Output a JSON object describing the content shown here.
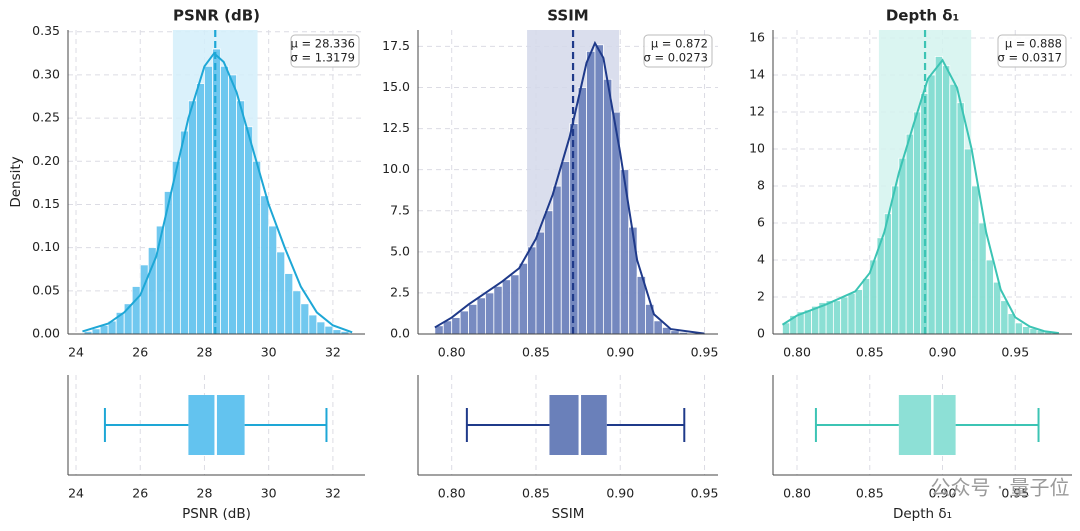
{
  "chart_data": [
    {
      "type": "histogram",
      "title": "PSNR (dB)",
      "xlabel": "PSNR (dB)",
      "ylabel": "Density",
      "color": "#62c3ee",
      "band_color": "#d3eefa",
      "grid": true,
      "bins": [
        24.25,
        24.5,
        24.75,
        25,
        25.25,
        25.5,
        25.75,
        26,
        26.25,
        26.5,
        26.75,
        27,
        27.25,
        27.5,
        27.75,
        28,
        28.25,
        28.5,
        28.75,
        29,
        29.25,
        29.5,
        29.75,
        30,
        30.25,
        30.5,
        30.75,
        31,
        31.25,
        31.5,
        31.75,
        32,
        32.25,
        32.5
      ],
      "counts": [
        0.003,
        0.006,
        0.01,
        0.015,
        0.025,
        0.035,
        0.055,
        0.08,
        0.1,
        0.125,
        0.165,
        0.2,
        0.235,
        0.27,
        0.29,
        0.31,
        0.33,
        0.31,
        0.3,
        0.27,
        0.24,
        0.2,
        0.16,
        0.125,
        0.095,
        0.07,
        0.05,
        0.035,
        0.022,
        0.014,
        0.009,
        0.005,
        0.003
      ],
      "kde": {
        "color": "#1ea7d6",
        "x": [
          24.2,
          25,
          25.5,
          26,
          26.5,
          27,
          27.5,
          28,
          28.3,
          28.6,
          29,
          29.5,
          30,
          30.5,
          31,
          31.5,
          32,
          32.6
        ],
        "y": [
          0.003,
          0.012,
          0.025,
          0.045,
          0.09,
          0.17,
          0.25,
          0.31,
          0.325,
          0.315,
          0.28,
          0.215,
          0.15,
          0.1,
          0.055,
          0.025,
          0.01,
          0.002
        ]
      },
      "mean": {
        "value": 28.336,
        "label": "μ = 28.336"
      },
      "std": {
        "value": 1.3179,
        "label": "σ = 1.3179"
      },
      "box": {
        "color": "#63c3ef",
        "line_color": "#1ea7d6",
        "whislo": 24.9,
        "q1": 27.5,
        "med": 28.35,
        "q3": 29.25,
        "whishi": 31.8
      },
      "xlim": [
        23.75,
        33
      ],
      "ylim": [
        0,
        0.352
      ],
      "xticks": [
        24,
        26,
        28,
        30,
        32
      ],
      "yticks": [
        {
          "value": 0,
          "label": "0.00"
        },
        0.05,
        {
          "value": 0.1,
          "label": "0.10"
        },
        0.15,
        {
          "value": 0.2,
          "label": "0.20"
        },
        0.25,
        {
          "value": 0.3,
          "label": "0.30"
        },
        0.35
      ]
    },
    {
      "type": "histogram",
      "title": "SSIM",
      "xlabel": "SSIM",
      "color": "#6a7fbb",
      "band_color": "#d3d8ea",
      "grid": true,
      "bins": [
        0.79,
        0.795,
        0.8,
        0.805,
        0.81,
        0.815,
        0.82,
        0.825,
        0.83,
        0.835,
        0.84,
        0.845,
        0.85,
        0.855,
        0.86,
        0.865,
        0.87,
        0.875,
        0.88,
        0.885,
        0.89,
        0.895,
        0.9,
        0.905,
        0.91,
        0.915,
        0.92,
        0.925,
        0.93,
        0.935,
        0.94,
        0.945,
        0.95
      ],
      "counts": [
        0.5,
        0.8,
        1.0,
        1.4,
        1.8,
        2.2,
        2.5,
        2.9,
        3.3,
        3.6,
        4.3,
        5.3,
        6.2,
        7.5,
        9.0,
        10.5,
        12.8,
        15.0,
        17.2,
        17.6,
        15.5,
        13.5,
        10.0,
        6.5,
        3.5,
        1.8,
        0.8,
        0.4,
        0.2,
        0.1,
        0.05,
        0.02
      ],
      "kde": {
        "color": "#1f3a8a",
        "x": [
          0.79,
          0.8,
          0.81,
          0.82,
          0.83,
          0.84,
          0.85,
          0.86,
          0.87,
          0.88,
          0.885,
          0.89,
          0.9,
          0.91,
          0.92,
          0.93,
          0.95
        ],
        "y": [
          0.4,
          1.0,
          1.8,
          2.5,
          3.2,
          4.0,
          5.8,
          8.5,
          12.0,
          16.5,
          17.7,
          16.8,
          11.0,
          4.5,
          1.2,
          0.3,
          0.02
        ]
      },
      "mean": {
        "value": 0.872,
        "label": "μ = 0.872"
      },
      "std": {
        "value": 0.0273,
        "label": "σ = 0.0273"
      },
      "box": {
        "color": "#6a80ba",
        "line_color": "#1f3a8a",
        "whislo": 0.809,
        "q1": 0.858,
        "med": 0.876,
        "q3": 0.892,
        "whishi": 0.938
      },
      "xlim": [
        0.78,
        0.958
      ],
      "ylim": [
        0,
        18.5
      ],
      "xticks": [
        {
          "value": 0.8,
          "label": "0.80"
        },
        0.85,
        {
          "value": 0.9,
          "label": "0.90"
        },
        0.95
      ],
      "yticks": [
        {
          "value": 0,
          "label": "0.0"
        },
        2.5,
        {
          "value": 5,
          "label": "5.0"
        },
        7.5,
        {
          "value": 10,
          "label": "10.0"
        },
        12.5,
        {
          "value": 15,
          "label": "15.0"
        },
        17.5
      ]
    },
    {
      "type": "histogram",
      "title": "Depth δ₁",
      "xlabel": "Depth δ₁",
      "color": "#7fdcd0",
      "band_color": "#d4f3ef",
      "grid": true,
      "bins": [
        0.79,
        0.795,
        0.8,
        0.805,
        0.81,
        0.815,
        0.82,
        0.825,
        0.83,
        0.835,
        0.84,
        0.845,
        0.85,
        0.855,
        0.86,
        0.865,
        0.87,
        0.875,
        0.88,
        0.885,
        0.89,
        0.895,
        0.9,
        0.905,
        0.91,
        0.915,
        0.92,
        0.925,
        0.93,
        0.935,
        0.94,
        0.945,
        0.95,
        0.955,
        0.96,
        0.965,
        0.97,
        0.975,
        0.98
      ],
      "counts": [
        0.6,
        1.0,
        1.2,
        1.3,
        1.5,
        1.7,
        1.8,
        1.8,
        2.0,
        2.2,
        2.4,
        3.0,
        4.0,
        5.2,
        6.5,
        8.0,
        9.5,
        10.8,
        12.0,
        13.0,
        14.0,
        15.0,
        14.5,
        13.5,
        12.5,
        10.0,
        8.0,
        6.0,
        4.0,
        2.8,
        1.8,
        1.1,
        0.6,
        0.4,
        0.3,
        0.2,
        0.1,
        0.05
      ],
      "kde": {
        "color": "#3cc4b4",
        "x": [
          0.79,
          0.8,
          0.82,
          0.84,
          0.85,
          0.86,
          0.87,
          0.88,
          0.89,
          0.9,
          0.91,
          0.92,
          0.93,
          0.94,
          0.95,
          0.96,
          0.97,
          0.98
        ],
        "y": [
          0.5,
          1.0,
          1.6,
          2.3,
          3.3,
          5.5,
          8.7,
          11.3,
          13.8,
          14.8,
          13.3,
          10.0,
          5.5,
          2.4,
          0.9,
          0.4,
          0.15,
          0.05
        ]
      },
      "mean": {
        "value": 0.888,
        "label": "μ = 0.888"
      },
      "std": {
        "value": 0.0317,
        "label": "σ = 0.0317"
      },
      "box": {
        "color": "#8de0d6",
        "line_color": "#3cc4b4",
        "whislo": 0.813,
        "q1": 0.87,
        "med": 0.893,
        "q3": 0.909,
        "whishi": 0.966
      },
      "xlim": [
        0.7835,
        0.989
      ],
      "ylim": [
        0,
        16.43
      ],
      "xticks": [
        {
          "value": 0.8,
          "label": "0.80"
        },
        0.85,
        {
          "value": 0.9,
          "label": "0.90"
        },
        0.95
      ],
      "yticks": [
        0,
        2,
        4,
        6,
        8,
        10,
        12,
        14,
        16
      ]
    }
  ],
  "watermark": "公众号 · 量子位"
}
